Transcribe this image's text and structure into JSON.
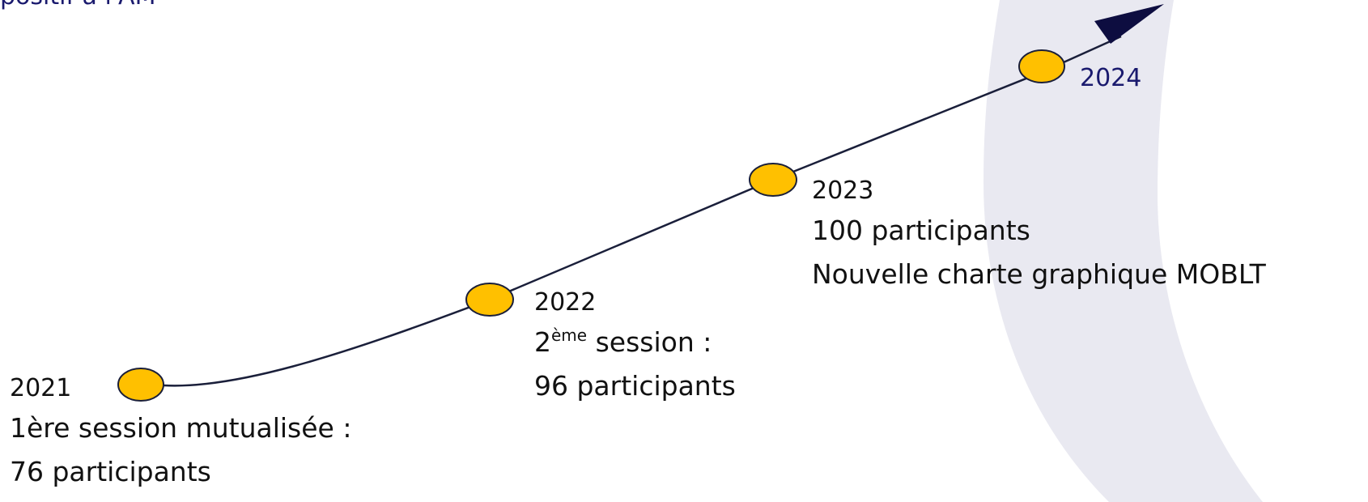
{
  "header": {
    "partial_text": "positif à l'AM"
  },
  "colors": {
    "milestone_fill": "#FFC000",
    "milestone_stroke": "#1a1f3a",
    "line": "#1a1f3a",
    "arrow": "#0d0d40",
    "background_arc": "#e8e8f0"
  },
  "milestones": [
    {
      "year": "2021",
      "line1": "1ère session mutualisée :",
      "line2": "76 participants"
    },
    {
      "year": "2022",
      "line1_number": "2",
      "line1_sup": "ème",
      "line1_rest": " session :",
      "line2": "96 participants"
    },
    {
      "year": "2023",
      "line1": "100 participants",
      "line2": "Nouvelle charte graphique MOBLT"
    },
    {
      "year": "2024"
    }
  ]
}
